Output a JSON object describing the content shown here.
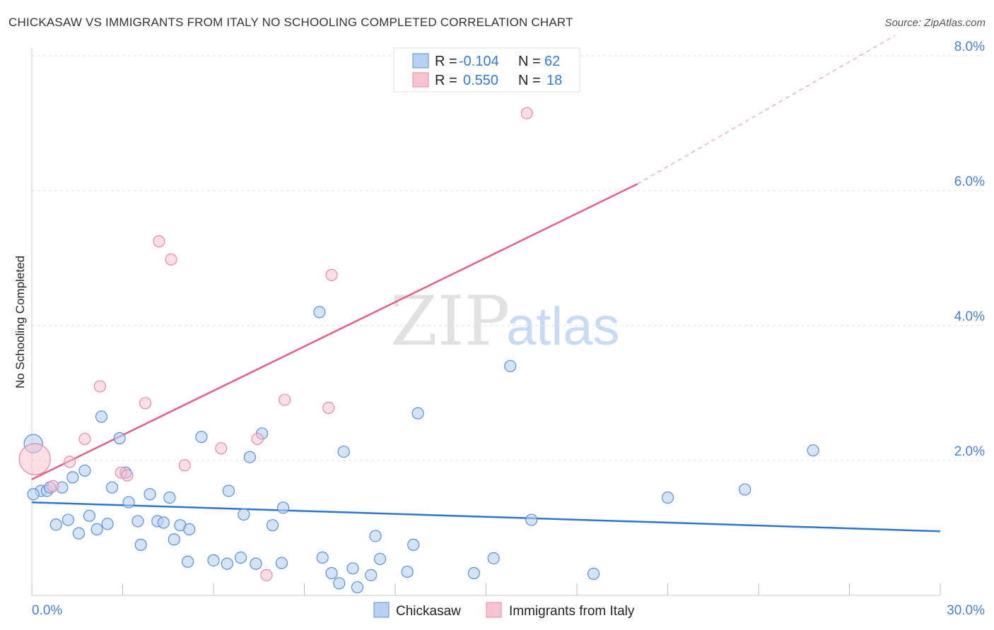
{
  "title": "CHICKASAW VS IMMIGRANTS FROM ITALY NO SCHOOLING COMPLETED CORRELATION CHART",
  "source": "Source: ZipAtlas.com",
  "watermark": {
    "zip": "ZIP",
    "atlas": "atlas"
  },
  "colors": {
    "blue_fill": "#b8d1f3",
    "blue_stroke": "#5a8fd6",
    "blue_line": "#2f74d0",
    "pink_fill": "#f7c3d2",
    "pink_stroke": "#e58aa6",
    "pink_line": "#e0608a",
    "tick_text": "#4a7fd0",
    "grid": "#dddddd"
  },
  "legend": {
    "rows": [
      {
        "r_label": "R = ",
        "r_value": "-0.104",
        "n_label": "N = ",
        "n_value": "62"
      },
      {
        "r_label": "R = ",
        "r_value": "0.550",
        "n_label": "N = ",
        "n_value": "18"
      }
    ]
  },
  "chart_data": {
    "type": "scatter",
    "title": "CHICKASAW VS IMMIGRANTS FROM ITALY NO SCHOOLING COMPLETED CORRELATION CHART",
    "xlabel": "",
    "ylabel": "No Schooling Completed",
    "xlim": [
      0,
      30
    ],
    "ylim": [
      0,
      8
    ],
    "x_tick_labels": [
      "0.0%",
      "30.0%"
    ],
    "y_ticks": [
      2,
      4,
      6,
      8
    ],
    "y_tick_labels": [
      "2.0%",
      "4.0%",
      "6.0%",
      "8.0%"
    ],
    "grid": "horizontal dashed",
    "legend_position": "top-center",
    "series": [
      {
        "name": "Chickasaw",
        "R": -0.104,
        "N": 62,
        "trend": {
          "x0": 0,
          "y0": 1.38,
          "x1": 30,
          "y1": 0.95
        },
        "points": [
          [
            0.05,
            2.25
          ],
          [
            0.3,
            1.55
          ],
          [
            0.5,
            1.55
          ],
          [
            0.6,
            1.6
          ],
          [
            0.8,
            1.05
          ],
          [
            1.0,
            1.6
          ],
          [
            1.2,
            1.12
          ],
          [
            1.35,
            1.75
          ],
          [
            1.55,
            0.92
          ],
          [
            1.75,
            1.85
          ],
          [
            1.9,
            1.18
          ],
          [
            2.15,
            0.98
          ],
          [
            2.3,
            2.65
          ],
          [
            2.5,
            1.06
          ],
          [
            2.65,
            1.6
          ],
          [
            2.9,
            2.33
          ],
          [
            3.1,
            1.82
          ],
          [
            3.2,
            1.38
          ],
          [
            3.5,
            1.1
          ],
          [
            3.6,
            0.75
          ],
          [
            3.9,
            1.5
          ],
          [
            4.15,
            1.1
          ],
          [
            4.35,
            1.08
          ],
          [
            4.55,
            1.45
          ],
          [
            4.7,
            0.83
          ],
          [
            4.9,
            1.04
          ],
          [
            5.15,
            0.5
          ],
          [
            5.2,
            0.98
          ],
          [
            5.6,
            2.35
          ],
          [
            6.0,
            0.52
          ],
          [
            6.45,
            0.47
          ],
          [
            6.5,
            1.55
          ],
          [
            6.9,
            0.56
          ],
          [
            7.0,
            1.2
          ],
          [
            7.2,
            2.05
          ],
          [
            7.4,
            0.47
          ],
          [
            7.6,
            2.4
          ],
          [
            7.95,
            1.04
          ],
          [
            8.25,
            0.48
          ],
          [
            8.3,
            1.3
          ],
          [
            9.5,
            4.2
          ],
          [
            9.6,
            0.56
          ],
          [
            9.9,
            0.33
          ],
          [
            10.15,
            0.18
          ],
          [
            10.3,
            2.13
          ],
          [
            10.6,
            0.4
          ],
          [
            10.75,
            0.12
          ],
          [
            11.2,
            0.3
          ],
          [
            11.35,
            0.88
          ],
          [
            11.5,
            0.54
          ],
          [
            12.4,
            0.35
          ],
          [
            12.6,
            0.75
          ],
          [
            12.75,
            2.7
          ],
          [
            14.6,
            0.33
          ],
          [
            15.25,
            0.55
          ],
          [
            15.8,
            3.4
          ],
          [
            16.5,
            1.12
          ],
          [
            18.55,
            0.32
          ],
          [
            21.0,
            1.45
          ],
          [
            23.55,
            1.57
          ],
          [
            25.8,
            2.15
          ],
          [
            0.05,
            1.5
          ]
        ]
      },
      {
        "name": "Immigrants from Italy",
        "R": 0.55,
        "N": 18,
        "trend": {
          "x0": 0,
          "y0": 1.72,
          "x1": 20,
          "y1": 6.1,
          "dash_to_x": 28.5,
          "dash_to_y": 8.3
        },
        "points": [
          [
            0.1,
            2.02
          ],
          [
            0.7,
            1.62
          ],
          [
            1.25,
            1.98
          ],
          [
            1.75,
            2.32
          ],
          [
            2.25,
            3.1
          ],
          [
            2.95,
            1.82
          ],
          [
            3.15,
            1.78
          ],
          [
            3.75,
            2.85
          ],
          [
            4.2,
            5.25
          ],
          [
            4.6,
            4.98
          ],
          [
            5.05,
            1.93
          ],
          [
            6.25,
            2.18
          ],
          [
            7.45,
            2.32
          ],
          [
            7.75,
            0.3
          ],
          [
            8.35,
            2.9
          ],
          [
            9.8,
            2.78
          ],
          [
            9.9,
            4.75
          ],
          [
            16.35,
            7.15
          ]
        ]
      }
    ]
  },
  "bottom_legend": [
    {
      "label": "Chickasaw"
    },
    {
      "label": "Immigrants from Italy"
    }
  ]
}
